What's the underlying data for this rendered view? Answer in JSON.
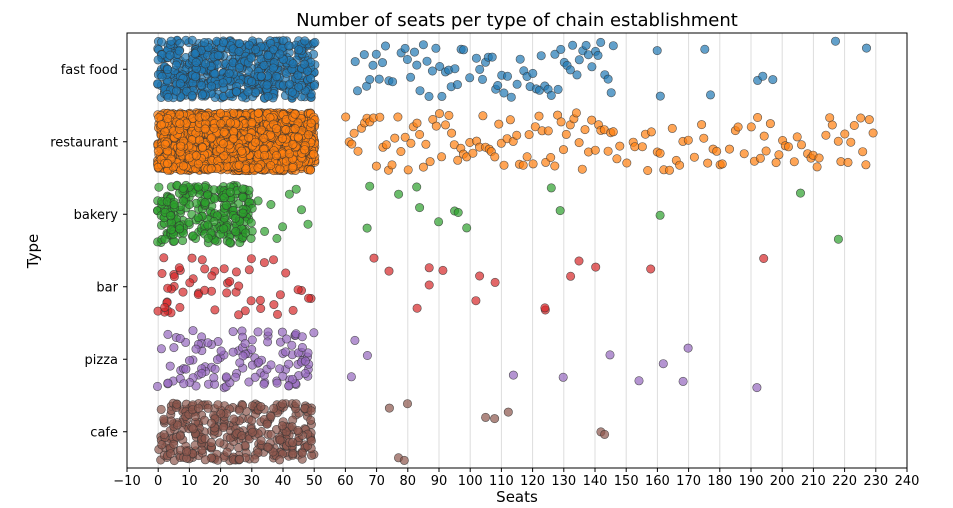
{
  "chart_data": {
    "type": "scatter",
    "title": "Number of seats per type of chain establishment",
    "xlabel": "Seats",
    "ylabel": "Type",
    "xlim": [
      -10,
      240
    ],
    "x_ticks": [
      -10,
      0,
      10,
      20,
      30,
      40,
      50,
      60,
      70,
      80,
      90,
      100,
      110,
      120,
      130,
      140,
      150,
      160,
      170,
      180,
      190,
      200,
      210,
      220,
      230,
      240
    ],
    "x_tick_labels": [
      "−10",
      "0",
      "10",
      "20",
      "30",
      "40",
      "50",
      "60",
      "70",
      "80",
      "90",
      "100",
      "110",
      "120",
      "130",
      "140",
      "150",
      "160",
      "170",
      "180",
      "190",
      "200",
      "210",
      "220",
      "230",
      "240"
    ],
    "grid": "vertical",
    "categories": [
      "fast food",
      "restaurant",
      "bakery",
      "bar",
      "pizza",
      "cafe"
    ],
    "series": [
      {
        "category": "fast food",
        "color": "#1f77b4",
        "dense_range": [
          0,
          50
        ],
        "dense_count": 600,
        "sparse_values": [
          63,
          64,
          66,
          67,
          68,
          69,
          70,
          71,
          72,
          73,
          74,
          75,
          78,
          79,
          80,
          81,
          82,
          83,
          84,
          85,
          86,
          87,
          88,
          89,
          90,
          91,
          92,
          93,
          94,
          95,
          96,
          97,
          98,
          100,
          102,
          103,
          104,
          105,
          106,
          107,
          108,
          109,
          110,
          111,
          112,
          113,
          115,
          116,
          117,
          118,
          119,
          120,
          121,
          122,
          123,
          124,
          125,
          126,
          127,
          128,
          129,
          130,
          131,
          132,
          133,
          134,
          135,
          136,
          137,
          138,
          139,
          140,
          141,
          142,
          143,
          144,
          145,
          146,
          160,
          161,
          175,
          177,
          192,
          194,
          197,
          217,
          227
        ]
      },
      {
        "category": "restaurant",
        "color": "#ff7f0e",
        "dense_range": [
          0,
          50
        ],
        "dense_count": 2200,
        "sparse_values": [
          60,
          61,
          62,
          63,
          64,
          65,
          66,
          67,
          68,
          69,
          70,
          71,
          72,
          73,
          74,
          75,
          76,
          77,
          78,
          79,
          80,
          81,
          82,
          83,
          84,
          85,
          86,
          87,
          88,
          89,
          90,
          91,
          92,
          93,
          94,
          95,
          96,
          97,
          98,
          99,
          100,
          101,
          102,
          103,
          104,
          105,
          106,
          107,
          108,
          109,
          110,
          111,
          112,
          113,
          114,
          115,
          116,
          117,
          118,
          119,
          120,
          121,
          122,
          123,
          124,
          125,
          126,
          127,
          128,
          129,
          130,
          131,
          132,
          133,
          134,
          135,
          136,
          137,
          138,
          139,
          140,
          141,
          142,
          143,
          144,
          145,
          146,
          147,
          148,
          150,
          152,
          153,
          155,
          156,
          157,
          158,
          160,
          161,
          162,
          164,
          165,
          166,
          167,
          168,
          170,
          172,
          174,
          175,
          176,
          178,
          179,
          180,
          181,
          183,
          185,
          186,
          188,
          190,
          191,
          192,
          193,
          194,
          195,
          196,
          198,
          199,
          200,
          201,
          202,
          204,
          205,
          206,
          208,
          209,
          210,
          211,
          212,
          214,
          215,
          216,
          218,
          219,
          220,
          221,
          222,
          223,
          225,
          226,
          227,
          228,
          229
        ]
      },
      {
        "category": "bakery",
        "color": "#2ca02c",
        "dense_range": [
          0,
          30
        ],
        "dense_count": 260,
        "sparse_values": [
          32,
          34,
          36,
          38,
          40,
          42,
          44,
          46,
          48,
          67,
          68,
          77,
          83,
          84,
          90,
          95,
          96,
          99,
          126,
          129,
          161,
          206,
          218
        ]
      },
      {
        "category": "bar",
        "color": "#d62728",
        "dense_range": [
          0,
          50
        ],
        "dense_count": 55,
        "sparse_values": [
          69,
          74,
          83,
          87,
          87,
          91,
          102,
          103,
          108,
          124,
          124,
          132,
          135,
          140,
          158,
          194
        ]
      },
      {
        "category": "pizza",
        "color": "#9467bd",
        "dense_range": [
          0,
          50
        ],
        "dense_count": 120,
        "sparse_values": [
          62,
          63,
          67,
          114,
          130,
          145,
          154,
          162,
          168,
          170,
          192
        ]
      },
      {
        "category": "cafe",
        "color": "#8c564b",
        "dense_range": [
          0,
          50
        ],
        "dense_count": 330,
        "sparse_values": [
          74,
          77,
          79,
          80,
          105,
          108,
          112,
          142,
          143
        ]
      }
    ]
  }
}
